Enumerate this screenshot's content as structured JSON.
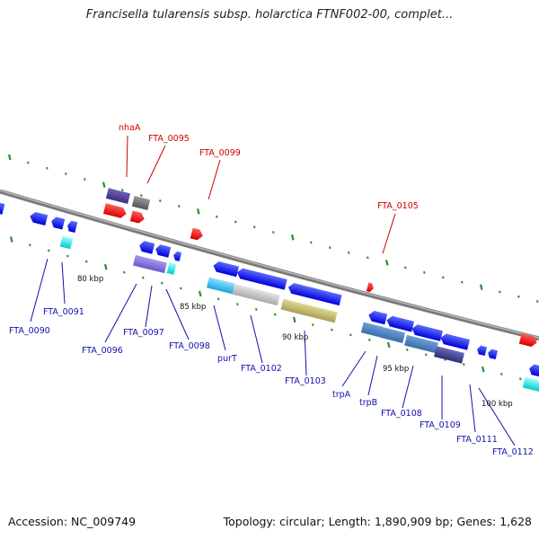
{
  "title": "Francisella tularensis subsp. holarctica FTNF002-00, complet...",
  "footer": {
    "accession": "Accession: NC_009749",
    "summary": "Topology: circular; Length: 1,890,909 bp; Genes: 1,628"
  },
  "colors": {
    "backbone": "#8a8a8a",
    "tick": "#2e8b2e",
    "red_label": "#cc0000",
    "blue_label": "#1111aa"
  },
  "scale_labels": [
    "80 kbp",
    "85 kbp",
    "90 kbp",
    "95 kbp",
    "100 kbp"
  ],
  "forward_labels": [
    "nhaA",
    "FTA_0095",
    "FTA_0099",
    "FTA_0105"
  ],
  "reverse_labels": [
    "FTA_0090",
    "FTA_0091",
    "FTA_0096",
    "FTA_0097",
    "FTA_0098",
    "purT",
    "FTA_0102",
    "FTA_0103",
    "trpA",
    "trpB",
    "FTA_0108",
    "FTA_0109",
    "FTA_0111",
    "FTA_0112"
  ]
}
